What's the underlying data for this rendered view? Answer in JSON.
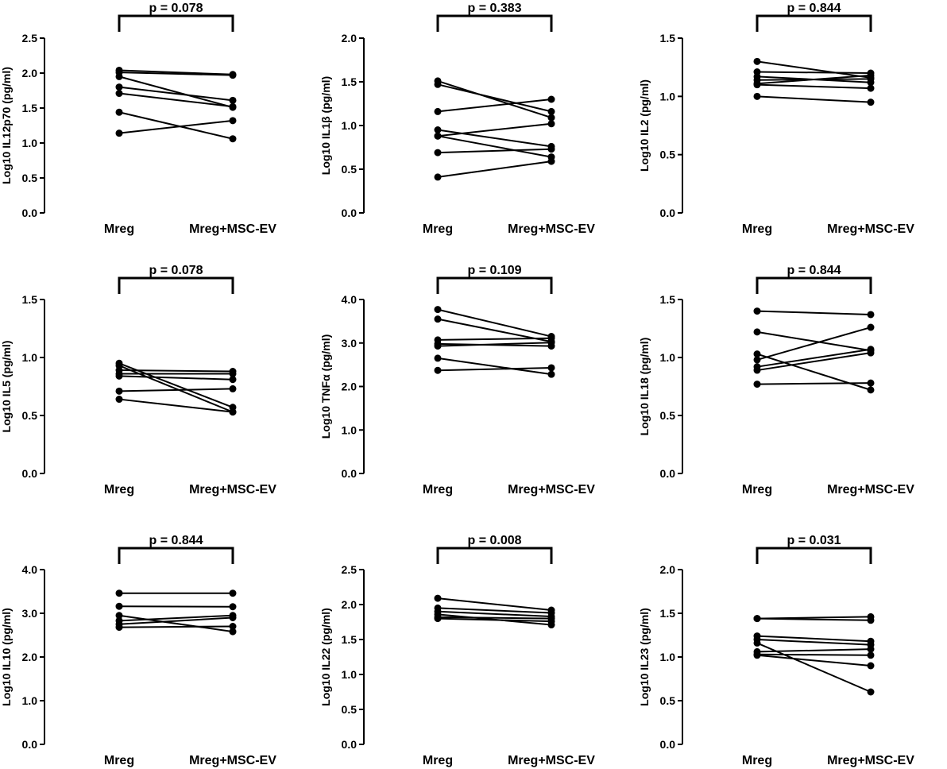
{
  "chart_data": [
    {
      "type": "paired-line",
      "ylabel": "Log10 IL12p70 (pg/ml)",
      "categories": [
        "Mreg",
        "Mreg+MSC-EV"
      ],
      "ylim": [
        0,
        2.5
      ],
      "yticks": [
        0.0,
        0.5,
        1.0,
        1.5,
        2.0,
        2.5
      ],
      "ytick_labels": [
        "0.0",
        "0.5",
        "1.0",
        "1.5",
        "2.0",
        "2.5"
      ],
      "p_value": "p = 0.078",
      "pairs": [
        [
          2.04,
          1.98
        ],
        [
          2.01,
          1.97
        ],
        [
          1.95,
          1.51
        ],
        [
          1.8,
          1.61
        ],
        [
          1.71,
          1.52
        ],
        [
          1.44,
          1.06
        ],
        [
          1.14,
          1.32
        ]
      ]
    },
    {
      "type": "paired-line",
      "ylabel": "Log10 IL1β (pg/ml)",
      "categories": [
        "Mreg",
        "Mreg+MSC-EV"
      ],
      "ylim": [
        0,
        2.0
      ],
      "yticks": [
        0.0,
        0.5,
        1.0,
        1.5,
        2.0
      ],
      "ytick_labels": [
        "0.0",
        "0.5",
        "1.0",
        "1.5",
        "2.0"
      ],
      "p_value": "p = 0.383",
      "pairs": [
        [
          1.51,
          1.09
        ],
        [
          1.47,
          1.16
        ],
        [
          1.16,
          1.3
        ],
        [
          0.95,
          0.76
        ],
        [
          0.88,
          1.02
        ],
        [
          0.88,
          0.64
        ],
        [
          0.69,
          0.73
        ],
        [
          0.41,
          0.59
        ]
      ]
    },
    {
      "type": "paired-line",
      "ylabel": "Log10 IL2 (pg/ml)",
      "categories": [
        "Mreg",
        "Mreg+MSC-EV"
      ],
      "ylim": [
        0,
        1.5
      ],
      "yticks": [
        0.0,
        0.5,
        1.0,
        1.5
      ],
      "ytick_labels": [
        "0.0",
        "0.5",
        "1.0",
        "1.5"
      ],
      "p_value": "p = 0.844",
      "pairs": [
        [
          1.3,
          1.16
        ],
        [
          1.21,
          1.2
        ],
        [
          1.17,
          1.12
        ],
        [
          1.14,
          1.15
        ],
        [
          1.11,
          1.18
        ],
        [
          1.1,
          1.07
        ],
        [
          1.0,
          0.95
        ]
      ]
    },
    {
      "type": "paired-line",
      "ylabel": "Log10 IL5 (pg/ml)",
      "categories": [
        "Mreg",
        "Mreg+MSC-EV"
      ],
      "ylim": [
        0,
        1.5
      ],
      "yticks": [
        0.0,
        0.5,
        1.0,
        1.5
      ],
      "ytick_labels": [
        "0.0",
        "0.5",
        "1.0",
        "1.5"
      ],
      "p_value": "p = 0.078",
      "pairs": [
        [
          0.95,
          0.57
        ],
        [
          0.93,
          0.53
        ],
        [
          0.89,
          0.88
        ],
        [
          0.86,
          0.86
        ],
        [
          0.84,
          0.81
        ],
        [
          0.71,
          0.73
        ],
        [
          0.64,
          0.53
        ]
      ]
    },
    {
      "type": "paired-line",
      "ylabel": "Log10 TNFα (pg/ml)",
      "categories": [
        "Mreg",
        "Mreg+MSC-EV"
      ],
      "ylim": [
        0,
        4.0
      ],
      "yticks": [
        0.0,
        1.0,
        2.0,
        3.0,
        4.0
      ],
      "ytick_labels": [
        "0.0",
        "1.0",
        "2.0",
        "3.0",
        "4.0"
      ],
      "p_value": "p = 0.109",
      "pairs": [
        [
          3.77,
          3.15
        ],
        [
          3.55,
          3.03
        ],
        [
          3.07,
          3.11
        ],
        [
          2.98,
          2.93
        ],
        [
          2.93,
          3.01
        ],
        [
          2.65,
          2.28
        ],
        [
          2.37,
          2.43
        ]
      ]
    },
    {
      "type": "paired-line",
      "ylabel": "Log10 IL18 (pg/ml)",
      "categories": [
        "Mreg",
        "Mreg+MSC-EV"
      ],
      "ylim": [
        0,
        1.5
      ],
      "yticks": [
        0.0,
        0.5,
        1.0,
        1.5
      ],
      "ytick_labels": [
        "0.0",
        "0.5",
        "1.0",
        "1.5"
      ],
      "p_value": "p = 0.844",
      "pairs": [
        [
          1.4,
          1.37
        ],
        [
          1.22,
          1.06
        ],
        [
          1.03,
          0.72
        ],
        [
          0.98,
          1.26
        ],
        [
          0.92,
          1.07
        ],
        [
          0.89,
          1.04
        ],
        [
          0.77,
          0.78
        ]
      ]
    },
    {
      "type": "paired-line",
      "ylabel": "Log10 IL10 (pg/ml)",
      "categories": [
        "Mreg",
        "Mreg+MSC-EV"
      ],
      "ylim": [
        0,
        4.0
      ],
      "yticks": [
        0.0,
        1.0,
        2.0,
        3.0,
        4.0
      ],
      "ytick_labels": [
        "0.0",
        "1.0",
        "2.0",
        "3.0",
        "4.0"
      ],
      "p_value": "p = 0.844",
      "pairs": [
        [
          3.46,
          3.46
        ],
        [
          3.16,
          3.15
        ],
        [
          2.95,
          2.58
        ],
        [
          2.83,
          2.95
        ],
        [
          2.75,
          2.9
        ],
        [
          2.68,
          2.7
        ]
      ]
    },
    {
      "type": "paired-line",
      "ylabel": "Log10 IL22 (pg/ml)",
      "categories": [
        "Mreg",
        "Mreg+MSC-EV"
      ],
      "ylim": [
        0,
        2.5
      ],
      "yticks": [
        0.0,
        0.5,
        1.0,
        1.5,
        2.0,
        2.5
      ],
      "ytick_labels": [
        "0.0",
        "0.5",
        "1.0",
        "1.5",
        "2.0",
        "2.5"
      ],
      "p_value": "p = 0.008",
      "pairs": [
        [
          2.09,
          1.92
        ],
        [
          1.95,
          1.88
        ],
        [
          1.9,
          1.83
        ],
        [
          1.86,
          1.71
        ],
        [
          1.82,
          1.8
        ],
        [
          1.8,
          1.76
        ]
      ]
    },
    {
      "type": "paired-line",
      "ylabel": "Log10 IL23 (pg/ml)",
      "categories": [
        "Mreg",
        "Mreg+MSC-EV"
      ],
      "ylim": [
        0,
        2.0
      ],
      "yticks": [
        0.0,
        0.5,
        1.0,
        1.5,
        2.0
      ],
      "ytick_labels": [
        "0.0",
        "0.5",
        "1.0",
        "1.5",
        "2.0"
      ],
      "p_value": "p = 0.031",
      "pairs": [
        [
          1.44,
          1.46
        ],
        [
          1.44,
          1.42
        ],
        [
          1.24,
          1.18
        ],
        [
          1.2,
          1.14
        ],
        [
          1.16,
          0.6
        ],
        [
          1.06,
          1.09
        ],
        [
          1.03,
          1.02
        ],
        [
          1.02,
          0.9
        ]
      ]
    }
  ]
}
